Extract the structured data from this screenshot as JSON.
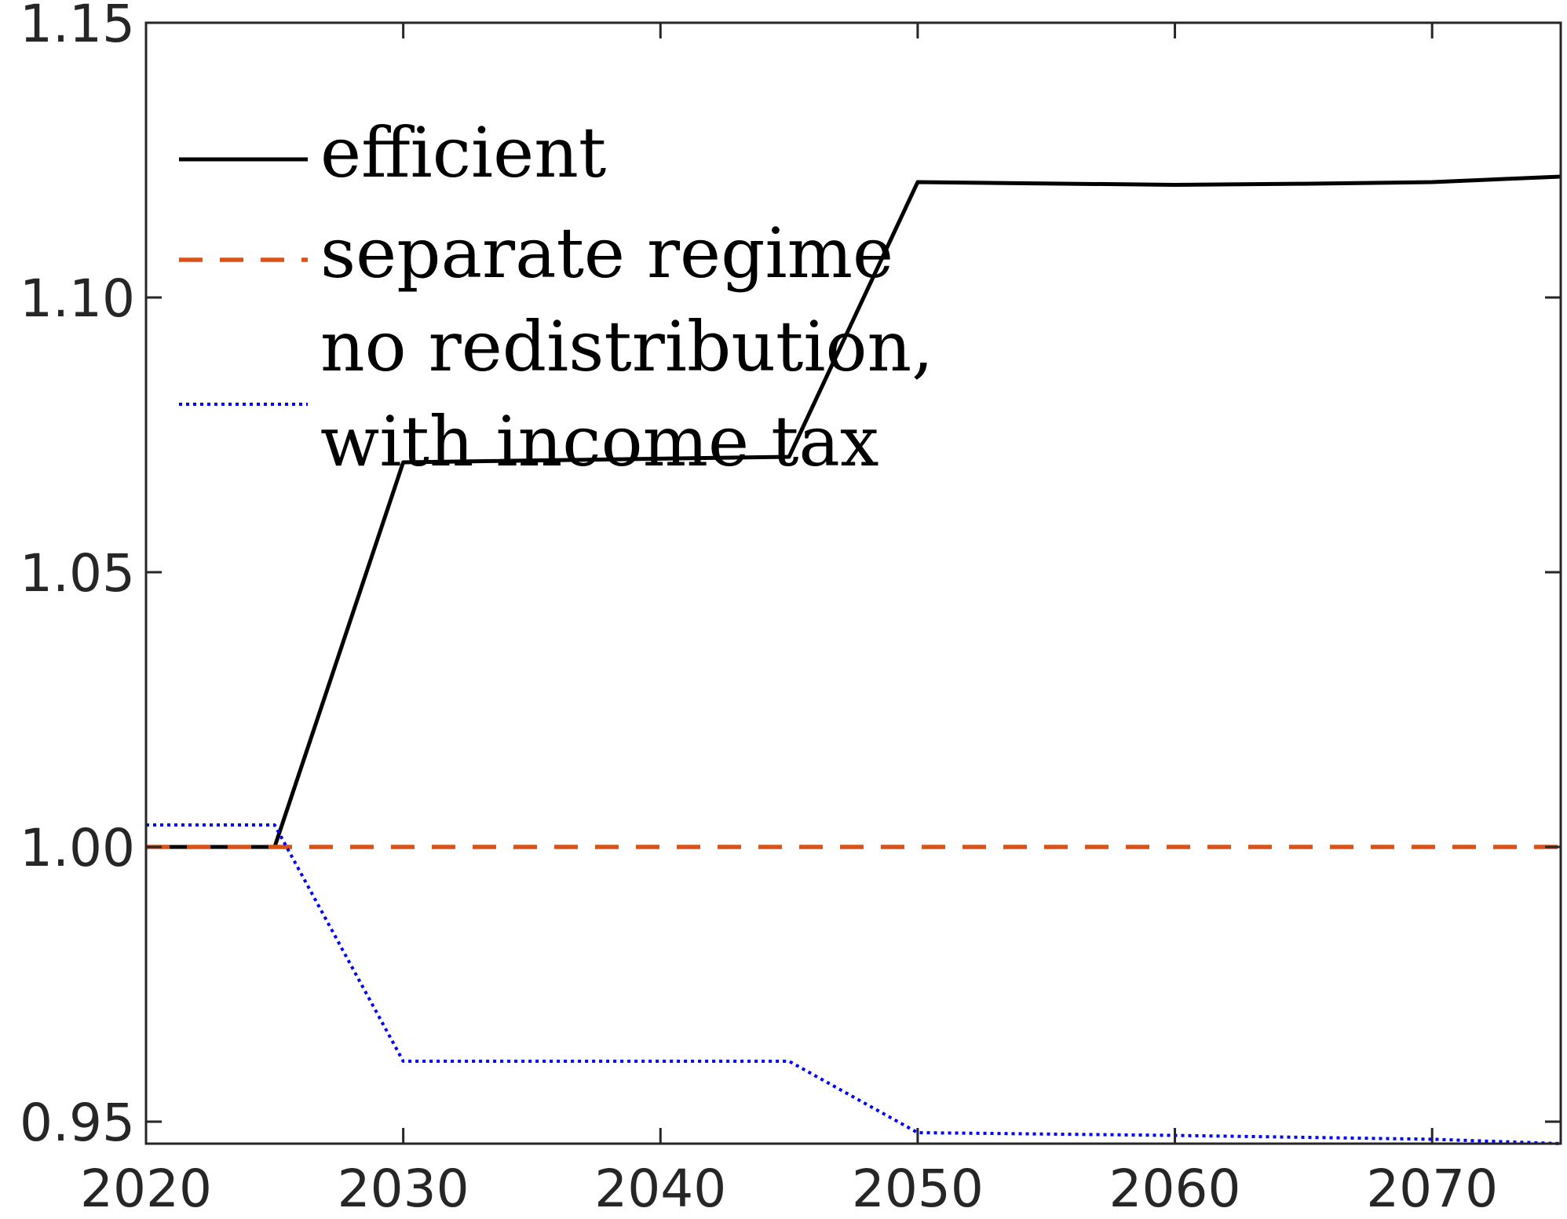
{
  "chart_data": {
    "type": "line",
    "title": "",
    "xlabel": "",
    "ylabel": "",
    "xlim": [
      2020,
      2075
    ],
    "ylim": [
      0.946,
      1.15
    ],
    "xticks": [
      2020,
      2030,
      2040,
      2050,
      2060,
      2070
    ],
    "yticks": [
      0.95,
      1.0,
      1.05,
      1.1,
      1.15
    ],
    "x_tick_labels": [
      "2020",
      "2030",
      "2040",
      "2050",
      "2060",
      "2070"
    ],
    "y_tick_labels": [
      "0.95",
      "1.00",
      "1.05",
      "1.10",
      "1.15"
    ],
    "grid": false,
    "legend_position": "top-left",
    "series": [
      {
        "name": "efficient",
        "style": "solid",
        "color": "#000000",
        "x": [
          2020,
          2025,
          2030,
          2045,
          2050,
          2060,
          2065,
          2070,
          2075
        ],
        "y": [
          1.0,
          1.0,
          1.07,
          1.071,
          1.121,
          1.1205,
          1.1207,
          1.121,
          1.122
        ]
      },
      {
        "name": "separate regime",
        "style": "dashed",
        "color": "#D95319",
        "x": [
          2020,
          2075
        ],
        "y": [
          1.0,
          1.0
        ]
      },
      {
        "name": "no redistribution,\nwith income tax",
        "name_lines": [
          "no redistribution,",
          "with income tax"
        ],
        "style": "dotted",
        "color": "#0000FF",
        "x": [
          2020,
          2025,
          2030,
          2045,
          2050,
          2060,
          2070,
          2075
        ],
        "y": [
          1.004,
          1.004,
          0.961,
          0.961,
          0.948,
          0.9475,
          0.9468,
          0.946
        ]
      }
    ]
  }
}
